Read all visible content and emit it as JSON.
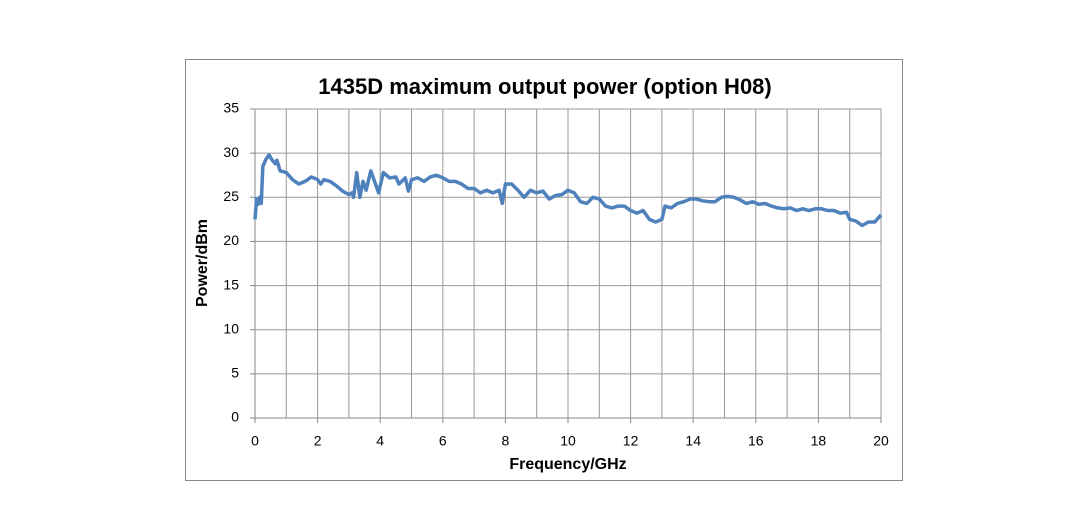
{
  "chart_data": {
    "type": "line",
    "title": "1435D maximum output power (option H08)",
    "xlabel": "Frequency/GHz",
    "ylabel": "Power/dBm",
    "x": [
      0,
      0.05,
      0.1,
      0.15,
      0.2,
      0.25,
      0.35,
      0.45,
      0.55,
      0.65,
      0.7,
      0.8,
      1.0,
      1.2,
      1.4,
      1.6,
      1.8,
      2.0,
      2.1,
      2.2,
      2.4,
      2.6,
      2.8,
      3.0,
      3.1,
      3.15,
      3.25,
      3.35,
      3.45,
      3.55,
      3.7,
      3.85,
      3.95,
      4.1,
      4.3,
      4.5,
      4.6,
      4.8,
      4.9,
      5.0,
      5.2,
      5.4,
      5.6,
      5.8,
      6.0,
      6.2,
      6.4,
      6.6,
      6.8,
      7.0,
      7.2,
      7.4,
      7.6,
      7.8,
      7.9,
      8.0,
      8.2,
      8.4,
      8.6,
      8.8,
      9.0,
      9.2,
      9.4,
      9.6,
      9.8,
      10.0,
      10.2,
      10.4,
      10.6,
      10.8,
      11.0,
      11.2,
      11.4,
      11.6,
      11.8,
      12.0,
      12.2,
      12.4,
      12.6,
      12.8,
      13.0,
      13.1,
      13.3,
      13.5,
      13.7,
      13.9,
      14.1,
      14.3,
      14.5,
      14.7,
      14.9,
      15.1,
      15.3,
      15.5,
      15.7,
      15.9,
      16.1,
      16.3,
      16.5,
      16.7,
      16.9,
      17.1,
      17.3,
      17.5,
      17.7,
      17.9,
      18.1,
      18.3,
      18.5,
      18.7,
      18.9,
      19.0,
      19.2,
      19.4,
      19.6,
      19.8,
      20.0
    ],
    "series": [
      {
        "color": "#4f81bd",
        "values": [
          22.5,
          24.8,
          24.2,
          25,
          24.3,
          28.5,
          29.3,
          29.8,
          29.2,
          28.8,
          29.2,
          28,
          27.8,
          27,
          26.5,
          26.8,
          27.3,
          27,
          26.5,
          27,
          26.8,
          26.3,
          25.7,
          25.3,
          25.5,
          25,
          27.8,
          25,
          26.8,
          25.8,
          28,
          26.5,
          25.5,
          27.8,
          27.2,
          27.3,
          26.5,
          27.2,
          25.7,
          27,
          27.2,
          26.8,
          27.3,
          27.5,
          27.2,
          26.8,
          26.8,
          26.5,
          26,
          26,
          25.5,
          25.8,
          25.5,
          25.8,
          24.3,
          26.5,
          26.5,
          25.8,
          25,
          25.8,
          25.5,
          25.7,
          24.8,
          25.2,
          25.3,
          25.8,
          25.5,
          24.5,
          24.3,
          25,
          24.8,
          24,
          23.8,
          24,
          24,
          23.5,
          23.2,
          23.5,
          22.5,
          22.2,
          22.5,
          24,
          23.8,
          24.3,
          24.5,
          24.8,
          24.8,
          24.6,
          24.5,
          24.5,
          25,
          25.1,
          25,
          24.7,
          24.3,
          24.5,
          24.2,
          24.3,
          24,
          23.8,
          23.7,
          23.8,
          23.5,
          23.7,
          23.5,
          23.7,
          23.7,
          23.5,
          23.5,
          23.2,
          23.3,
          22.5,
          22.3,
          21.8,
          22.2,
          22.2,
          23
        ]
      }
    ],
    "xlim": [
      0,
      20
    ],
    "xticks": [
      0,
      2,
      4,
      6,
      8,
      10,
      12,
      14,
      16,
      18,
      20
    ],
    "xminor": [
      1,
      3,
      5,
      7,
      9,
      11,
      13,
      15,
      17,
      19
    ],
    "ylim": [
      0,
      35
    ],
    "yticks": [
      0,
      5,
      10,
      15,
      20,
      25,
      30,
      35
    ],
    "grid": true
  }
}
